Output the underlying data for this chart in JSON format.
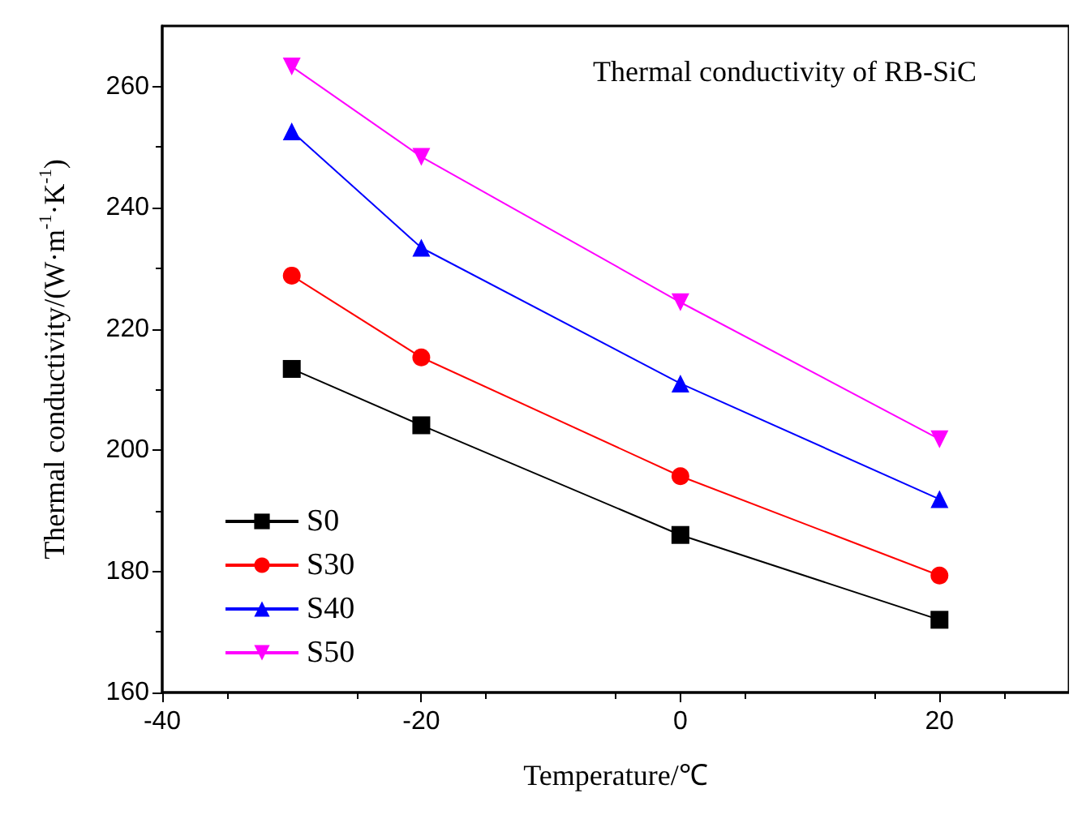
{
  "chart_data": {
    "type": "line",
    "title": "Thermal conductivity of RB-SiC",
    "xlabel": "Temperature/℃",
    "ylabel": "Thermal conductivity/(W·m$^{-1}$·K$^{-1}$)",
    "x": [
      -30,
      -20,
      0,
      20
    ],
    "series": [
      {
        "name": "S0",
        "color": "#000000",
        "marker": "square",
        "values": [
          213.4,
          204.1,
          186.0,
          172.0
        ]
      },
      {
        "name": "S30",
        "color": "#ff0000",
        "marker": "circle",
        "values": [
          228.8,
          215.3,
          195.7,
          179.3
        ]
      },
      {
        "name": "S40",
        "color": "#0000ff",
        "marker": "triangle",
        "values": [
          252.6,
          233.4,
          211.0,
          191.9
        ]
      },
      {
        "name": "S50",
        "color": "#ff00ff",
        "marker": "triangle-down",
        "values": [
          263.3,
          248.4,
          224.4,
          201.8
        ]
      }
    ],
    "xlim": [
      -40,
      30
    ],
    "xticks": [
      -40,
      -20,
      0,
      20
    ],
    "ylim": [
      160,
      270
    ],
    "yticks": [
      160,
      180,
      200,
      220,
      240,
      260
    ],
    "grid": false,
    "legend": "bottom left",
    "line_style": "solid"
  }
}
